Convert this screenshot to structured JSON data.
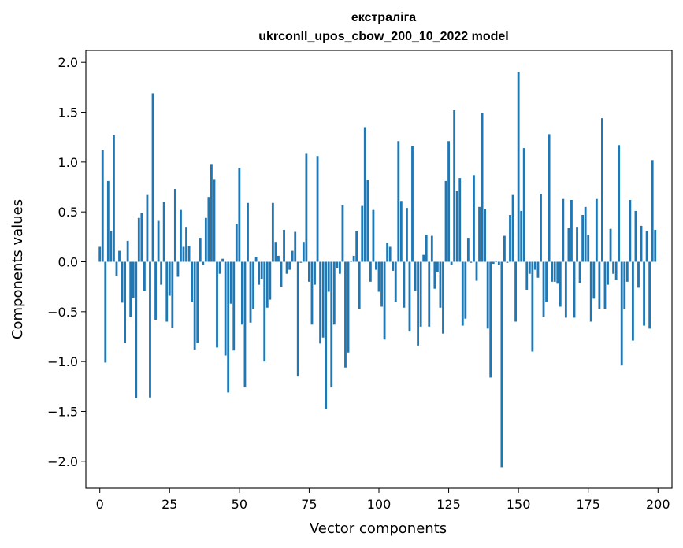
{
  "chart_data": {
    "type": "bar",
    "title": "екстраліга",
    "subtitle": "ukrconll_upos_cbow_200_10_2022 model",
    "xlabel": "Vector components",
    "ylabel": "Components values",
    "xlim": [
      -5,
      205
    ],
    "ylim": [
      -2.27,
      2.12
    ],
    "xticks": [
      0,
      25,
      50,
      75,
      100,
      125,
      150,
      175,
      200
    ],
    "yticks": [
      2.0,
      1.5,
      1.0,
      0.5,
      0.0,
      -0.5,
      -1.0,
      -1.5,
      -2.0
    ],
    "ytick_labels": [
      "2.0",
      "1.5",
      "1.0",
      "0.5",
      "0.0",
      "−0.5",
      "−1.0",
      "−1.5",
      "−2.0"
    ],
    "grid": false,
    "bar_color": "#1f77b4",
    "x": [
      0,
      1,
      2,
      3,
      4,
      5,
      6,
      7,
      8,
      9,
      10,
      11,
      12,
      13,
      14,
      15,
      16,
      17,
      18,
      19,
      20,
      21,
      22,
      23,
      24,
      25,
      26,
      27,
      28,
      29,
      30,
      31,
      32,
      33,
      34,
      35,
      36,
      37,
      38,
      39,
      40,
      41,
      42,
      43,
      44,
      45,
      46,
      47,
      48,
      49,
      50,
      51,
      52,
      53,
      54,
      55,
      56,
      57,
      58,
      59,
      60,
      61,
      62,
      63,
      64,
      65,
      66,
      67,
      68,
      69,
      70,
      71,
      72,
      73,
      74,
      75,
      76,
      77,
      78,
      79,
      80,
      81,
      82,
      83,
      84,
      85,
      86,
      87,
      88,
      89,
      90,
      91,
      92,
      93,
      94,
      95,
      96,
      97,
      98,
      99,
      100,
      101,
      102,
      103,
      104,
      105,
      106,
      107,
      108,
      109,
      110,
      111,
      112,
      113,
      114,
      115,
      116,
      117,
      118,
      119,
      120,
      121,
      122,
      123,
      124,
      125,
      126,
      127,
      128,
      129,
      130,
      131,
      132,
      133,
      134,
      135,
      136,
      137,
      138,
      139,
      140,
      141,
      142,
      143,
      144,
      145,
      146,
      147,
      148,
      149,
      150,
      151,
      152,
      153,
      154,
      155,
      156,
      157,
      158,
      159,
      160,
      161,
      162,
      163,
      164,
      165,
      166,
      167,
      168,
      169,
      170,
      171,
      172,
      173,
      174,
      175,
      176,
      177,
      178,
      179,
      180,
      181,
      182,
      183,
      184,
      185,
      186,
      187,
      188,
      189,
      190,
      191,
      192,
      193,
      194,
      195,
      196,
      197,
      198,
      199
    ],
    "values": [
      0.15,
      1.12,
      -1.01,
      0.81,
      0.31,
      1.27,
      -0.14,
      0.11,
      -0.41,
      -0.81,
      0.21,
      -0.55,
      -0.36,
      -1.37,
      0.44,
      0.49,
      -0.29,
      0.67,
      -1.36,
      1.69,
      -0.58,
      0.41,
      -0.23,
      0.6,
      -0.6,
      -0.34,
      -0.66,
      0.73,
      -0.15,
      0.52,
      0.15,
      0.35,
      0.16,
      -0.4,
      -0.88,
      -0.81,
      0.24,
      -0.03,
      0.44,
      0.65,
      0.98,
      0.83,
      -0.86,
      -0.12,
      0.03,
      -0.94,
      -1.31,
      -0.42,
      -0.89,
      0.38,
      0.94,
      -0.63,
      -1.26,
      0.59,
      -0.61,
      -0.47,
      0.05,
      -0.23,
      -0.17,
      -1.0,
      -0.46,
      -0.38,
      0.59,
      0.2,
      0.06,
      -0.25,
      0.32,
      -0.12,
      -0.08,
      0.11,
      0.3,
      -1.15,
      -0.01,
      0.2,
      1.09,
      -0.2,
      -0.63,
      -0.23,
      1.06,
      -0.82,
      -0.76,
      -1.48,
      -0.3,
      -1.26,
      -0.63,
      -0.06,
      -0.12,
      0.57,
      -1.06,
      -0.91,
      0.0,
      0.06,
      0.31,
      -0.47,
      0.56,
      1.35,
      0.82,
      -0.2,
      0.52,
      -0.08,
      -0.3,
      -0.45,
      -0.78,
      0.19,
      0.15,
      -0.09,
      -0.4,
      1.21,
      0.61,
      -0.46,
      0.54,
      -0.7,
      1.16,
      -0.29,
      -0.84,
      -0.65,
      0.07,
      0.27,
      -0.65,
      0.26,
      -0.27,
      -0.1,
      -0.46,
      -0.72,
      0.81,
      1.21,
      -0.03,
      1.52,
      0.71,
      0.84,
      -0.64,
      -0.57,
      0.24,
      -0.01,
      0.87,
      -0.19,
      0.55,
      1.49,
      0.53,
      -0.67,
      -1.16,
      -0.02,
      0.0,
      -0.03,
      -2.06,
      0.26,
      -0.01,
      0.47,
      0.67,
      -0.6,
      1.9,
      0.51,
      1.14,
      -0.28,
      -0.12,
      -0.9,
      -0.08,
      -0.16,
      0.68,
      -0.55,
      -0.4,
      1.28,
      -0.2,
      -0.2,
      -0.22,
      -0.45,
      0.63,
      -0.56,
      0.34,
      0.62,
      -0.56,
      0.35,
      -0.21,
      0.47,
      0.55,
      0.27,
      -0.6,
      -0.37,
      0.63,
      -0.47,
      1.44,
      -0.47,
      -0.23,
      0.33,
      -0.12,
      -0.18,
      1.17,
      -1.04,
      -0.47,
      -0.2,
      0.62,
      -0.79,
      0.51,
      -0.26,
      0.36,
      -0.64,
      0.31,
      -0.67,
      1.02,
      0.32
    ]
  }
}
